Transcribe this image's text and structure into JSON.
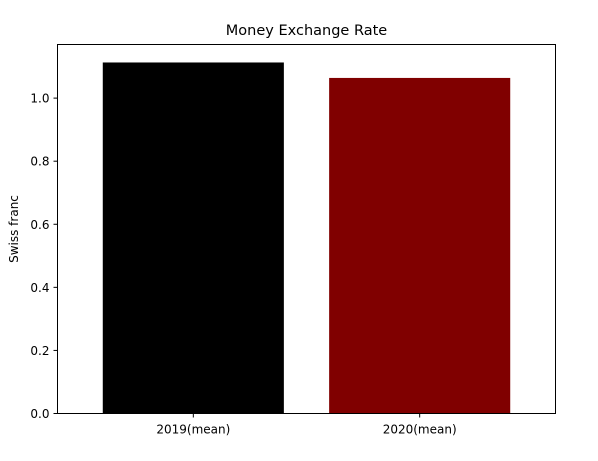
{
  "chart_data": {
    "type": "bar",
    "title": "Money Exchange Rate",
    "xlabel": "",
    "ylabel": "Swiss franc",
    "categories": [
      "2019(mean)",
      "2020(mean)"
    ],
    "values": [
      1.113,
      1.064
    ],
    "colors": [
      "#000000",
      "#800000"
    ],
    "ylim": [
      0,
      1.17
    ],
    "yticks": [
      0.0,
      0.2,
      0.4,
      0.6,
      0.8,
      1.0
    ],
    "ytick_labels": [
      "0.0",
      "0.2",
      "0.4",
      "0.6",
      "0.8",
      "1.0"
    ],
    "grid": false,
    "legend": "none"
  }
}
